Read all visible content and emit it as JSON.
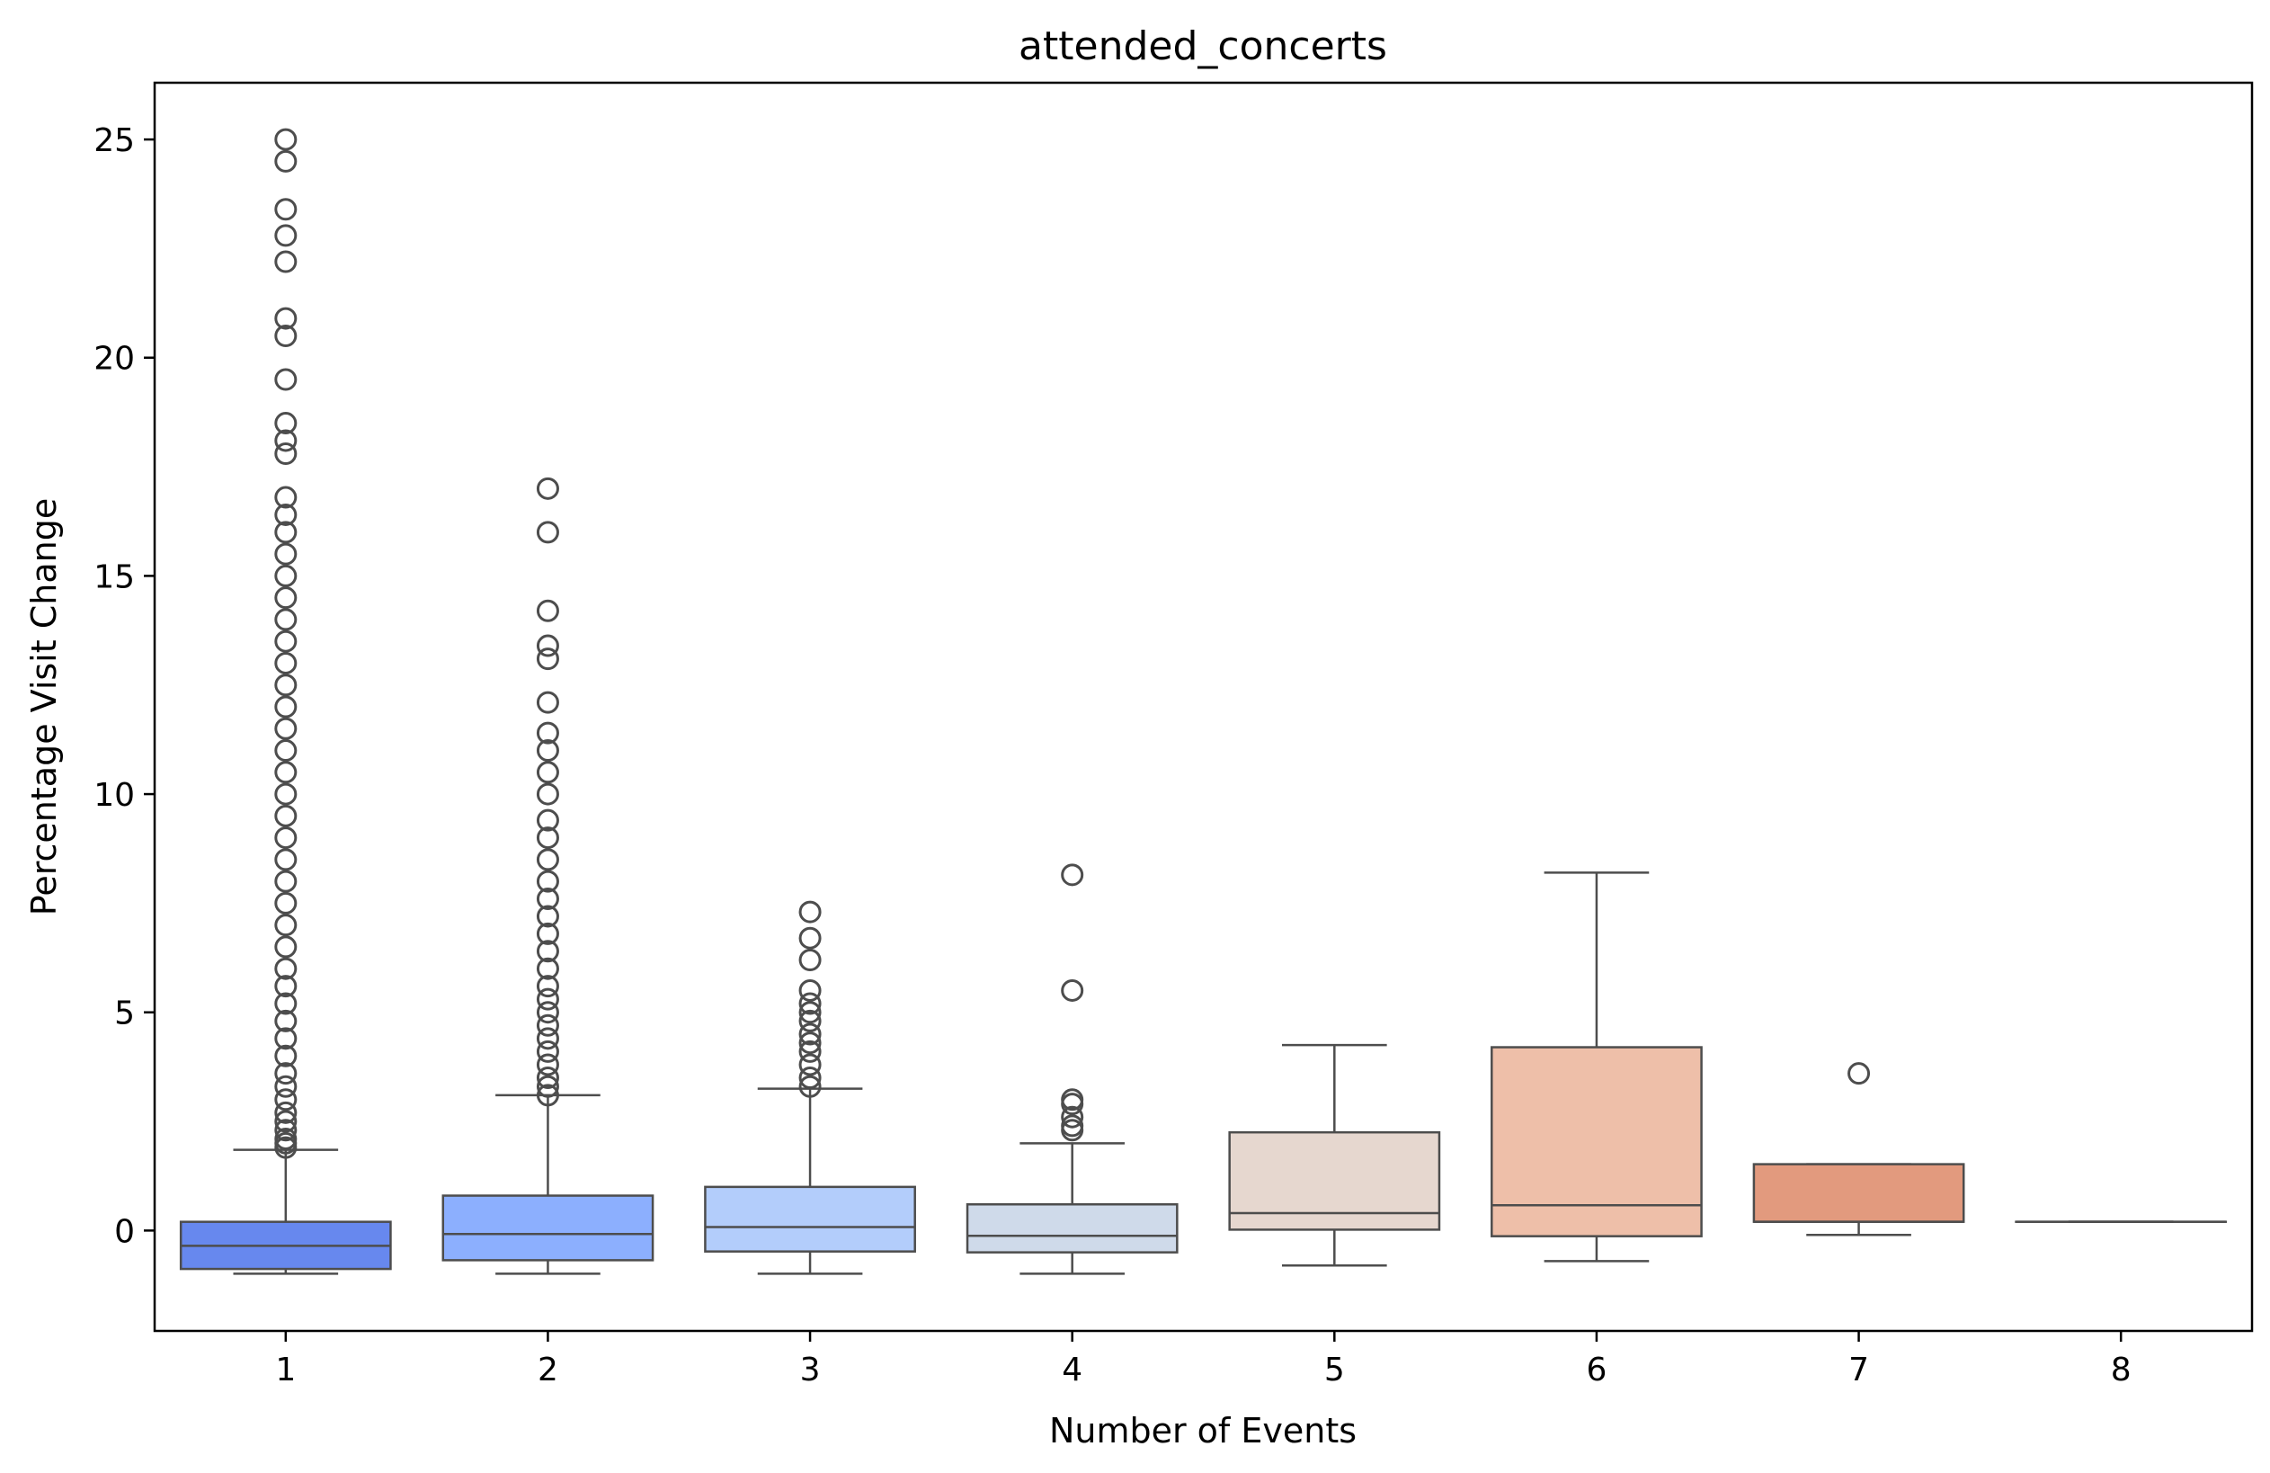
{
  "chart_data": {
    "type": "box",
    "title": "attended_concerts",
    "xlabel": "Number of Events",
    "ylabel": "Percentage Visit Change",
    "ylim": [
      -2.3,
      26.3
    ],
    "yticks": [
      0,
      5,
      10,
      15,
      20,
      25
    ],
    "grid": false,
    "legend": "none",
    "categories": [
      "1",
      "2",
      "3",
      "4",
      "5",
      "6",
      "7",
      "8"
    ],
    "colors": [
      "#6788ee",
      "#8caffe",
      "#b3cdfb",
      "#cfdaea",
      "#e6d7cf",
      "#eebfa9",
      "#e29a7e",
      "#d9846a"
    ],
    "line_color": "#4d4d4d",
    "boxes": [
      {
        "category": "1",
        "q1": -0.88,
        "median": -0.35,
        "q3": 0.2,
        "whisker_low": -0.99,
        "whisker_high": 1.85,
        "outliers": [
          1.9,
          2.0,
          2.1,
          2.3,
          2.5,
          2.7,
          3.0,
          3.3,
          3.6,
          4.0,
          4.4,
          4.8,
          5.2,
          5.6,
          6.0,
          6.5,
          7.0,
          7.5,
          8.0,
          8.5,
          9.0,
          9.5,
          10.0,
          10.5,
          11.0,
          11.5,
          12.0,
          12.5,
          13.0,
          13.5,
          14.0,
          14.5,
          15.0,
          15.5,
          16.0,
          16.4,
          16.8,
          17.8,
          18.1,
          18.5,
          19.5,
          20.5,
          20.9,
          22.2,
          22.8,
          23.4,
          24.5,
          25.0
        ]
      },
      {
        "category": "2",
        "q1": -0.68,
        "median": -0.08,
        "q3": 0.8,
        "whisker_low": -0.99,
        "whisker_high": 3.1,
        "outliers": [
          3.1,
          3.3,
          3.5,
          3.8,
          4.1,
          4.4,
          4.7,
          5.0,
          5.3,
          5.6,
          6.0,
          6.4,
          6.8,
          7.2,
          7.6,
          8.0,
          8.5,
          9.0,
          9.4,
          10.0,
          10.5,
          11.0,
          11.4,
          12.1,
          13.1,
          13.4,
          14.2,
          16.0,
          17.0
        ]
      },
      {
        "category": "3",
        "q1": -0.48,
        "median": 0.08,
        "q3": 1.0,
        "whisker_low": -0.99,
        "whisker_high": 3.25,
        "outliers": [
          3.3,
          3.5,
          3.8,
          4.1,
          4.3,
          4.5,
          4.8,
          5.0,
          5.2,
          5.5,
          6.2,
          6.7,
          7.3
        ]
      },
      {
        "category": "4",
        "q1": -0.5,
        "median": -0.12,
        "q3": 0.6,
        "whisker_low": -0.99,
        "whisker_high": 2.0,
        "outliers": [
          2.3,
          2.4,
          2.6,
          2.9,
          3.0,
          5.5,
          8.15
        ]
      },
      {
        "category": "5",
        "q1": 0.02,
        "median": 0.4,
        "q3": 2.25,
        "whisker_low": -0.8,
        "whisker_high": 4.25,
        "outliers": []
      },
      {
        "category": "6",
        "q1": -0.13,
        "median": 0.58,
        "q3": 4.2,
        "whisker_low": -0.7,
        "whisker_high": 8.2,
        "outliers": []
      },
      {
        "category": "7",
        "q1": 0.2,
        "median": 0.2,
        "q3": 1.52,
        "whisker_low": -0.1,
        "whisker_high": 1.52,
        "outliers": [
          3.6
        ]
      },
      {
        "category": "8",
        "q1": 0.2,
        "median": 0.2,
        "q3": 0.2,
        "whisker_low": 0.2,
        "whisker_high": 0.2,
        "outliers": []
      }
    ]
  }
}
